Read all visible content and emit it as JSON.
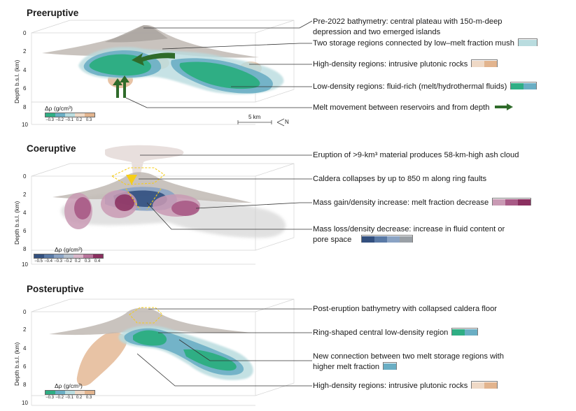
{
  "panels": [
    {
      "title": "Preeruptive",
      "y_label": "Depth b.s.l. (km)",
      "depth_ticks": [
        "0",
        "2",
        "4",
        "6",
        "8",
        "10"
      ],
      "colorbar": {
        "title": "Δρ (g/cm³)",
        "ticks": [
          "−0.3",
          "−0.2",
          "−0.1",
          "0.2",
          "0.3"
        ]
      },
      "scale_label": "5 km",
      "north_label": "N",
      "labels": [
        {
          "text": "Pre-2022 bathymetry: central plateau with 150-m-deep",
          "text2": "depression and two emerged islands"
        },
        {
          "text": "Two storage regions connected by low–melt fraction mush"
        },
        {
          "text": "High-density regions: intrusive plutonic rocks"
        },
        {
          "text": "Low-density regions: fluid-rich (melt/hydrothermal fluids)"
        },
        {
          "text": "Melt movement between reservoirs and from depth"
        }
      ]
    },
    {
      "title": "Coeruptive",
      "y_label": "Depth b.s.l. (km)",
      "depth_ticks": [
        "0",
        "2",
        "4",
        "6",
        "8",
        "10"
      ],
      "colorbar": {
        "title": "Δρ (g/cm³)",
        "ticks": [
          "−0.5",
          "−0.4",
          "−0.3",
          "−0.2",
          "0.2",
          "0.3",
          "0.4"
        ]
      },
      "labels": [
        {
          "text": "Eruption of >9-km³ material produces 58-km-high ash cloud"
        },
        {
          "text": "Caldera collapses by up to 850 m along ring faults"
        },
        {
          "text": "Mass gain/density increase: melt fraction decrease"
        },
        {
          "text": "Mass loss/density decrease: increase in fluid content or",
          "text2": "pore space"
        }
      ]
    },
    {
      "title": "Posteruptive",
      "y_label": "Depth b.s.l. (km)",
      "depth_ticks": [
        "0",
        "2",
        "4",
        "6",
        "8",
        "10"
      ],
      "colorbar": {
        "title": "Δρ (g/cm³)",
        "ticks": [
          "−0.3",
          "−0.2",
          "−0.1",
          "0.2",
          "0.3"
        ]
      },
      "labels": [
        {
          "text": "Post-eruption bathymetry with collapsed caldera floor"
        },
        {
          "text": "Ring-shaped central low-density region"
        },
        {
          "text": "New connection between two melt storage regions with",
          "text2": "higher melt fraction"
        },
        {
          "text": "High-density regions: intrusive plutonic rocks"
        }
      ]
    }
  ],
  "colors": {
    "bathymetry": "#b9b3ad",
    "low_density_green": "#2fae84",
    "low_density_blue": "#6aaec4",
    "mush": "#b9dcdf",
    "high_density": "#e2b48e",
    "melt_arrow": "#2f6b2a",
    "magenta_light": "#c99ab4",
    "magenta_mid": "#a85a86",
    "magenta_dark": "#8a2f5f",
    "loss_dark": "#33507f",
    "loss_mid": "#5a7aa6",
    "loss_light": "#8aa3c4",
    "loss_gray": "#9aa0a6",
    "caldera_yellow": "#f5cd1a"
  }
}
